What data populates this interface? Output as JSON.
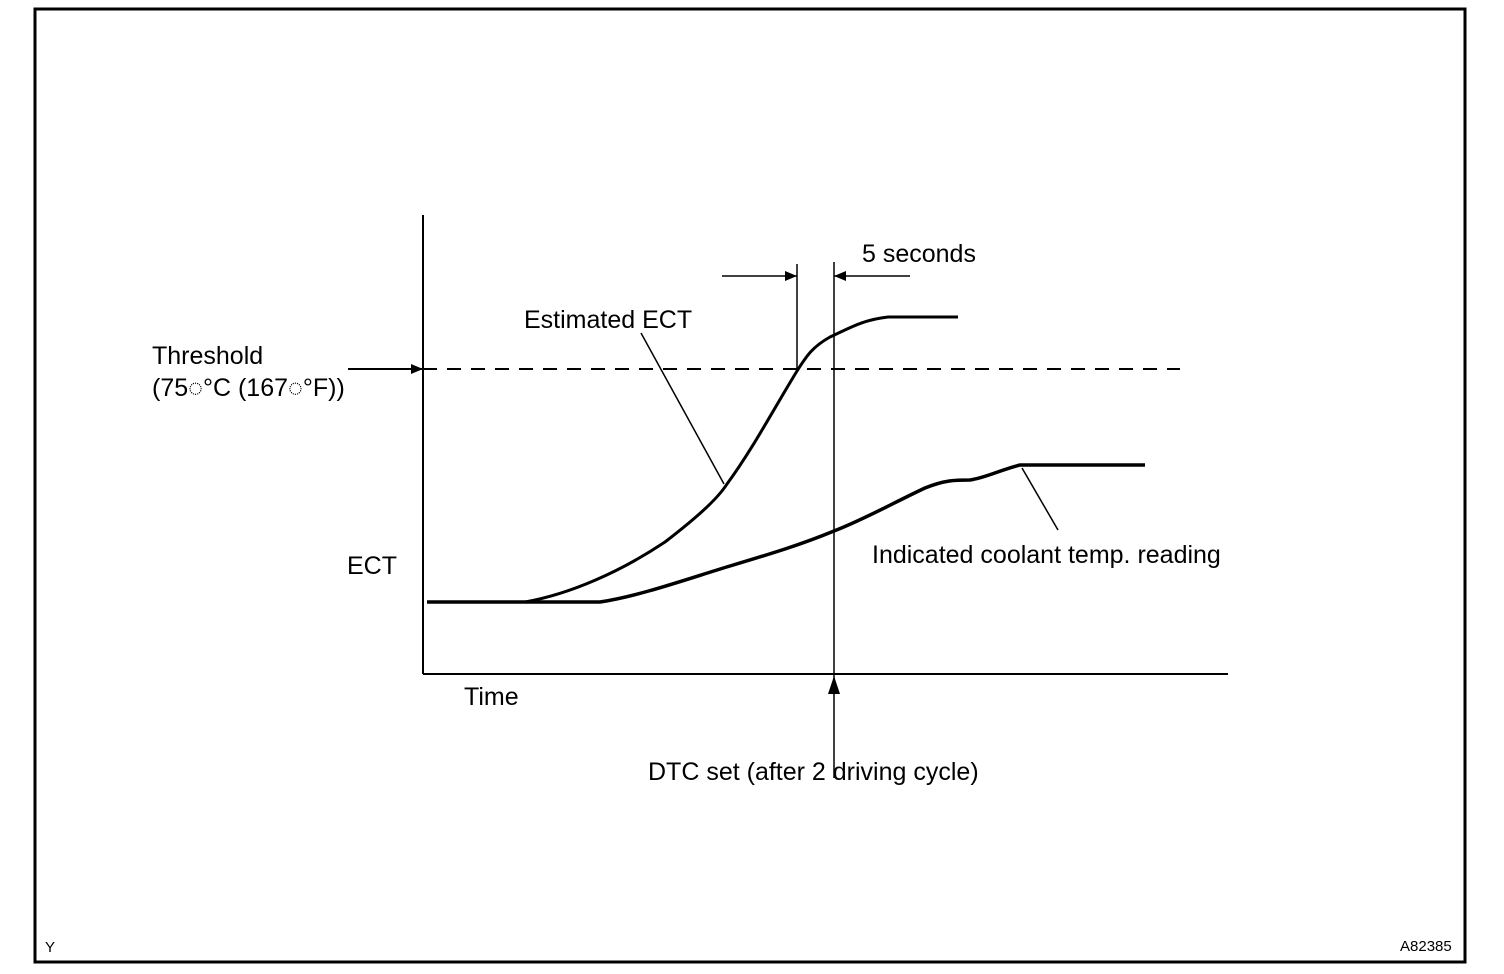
{
  "diagram": {
    "axis_y_label": "ECT",
    "axis_x_label": "Time",
    "threshold_label_line1": "Threshold",
    "threshold_label_line2": "(75◌°C (167◌°F))",
    "estimated_label": "Estimated ECT",
    "indicated_label": "Indicated coolant temp. reading",
    "interval_label": "5 seconds",
    "dtc_label": "DTC set (after 2 driving cycle)",
    "corner_left": "Y",
    "corner_right": "A82385"
  }
}
